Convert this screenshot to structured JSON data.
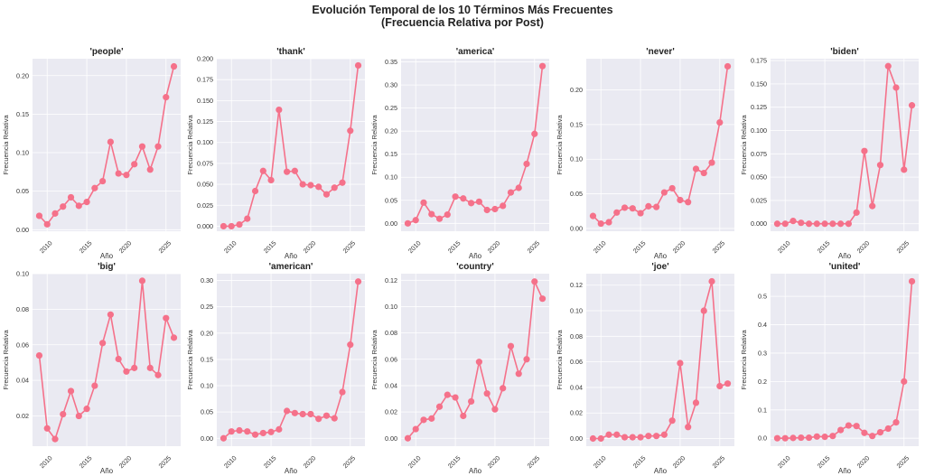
{
  "figure": {
    "title_line1": "Evolución Temporal de los 10 Términos Más Frecuentes",
    "title_line2": "(Frecuencia Relativa por Post)",
    "line_color": "#f5718a",
    "panel_bg": "#eaeaf2"
  },
  "chart_data": [
    {
      "type": "line",
      "title": "'people'",
      "xlabel": "Año",
      "ylabel": "Frecuencia Relativa",
      "x": [
        2009,
        2010,
        2011,
        2012,
        2013,
        2014,
        2015,
        2016,
        2017,
        2018,
        2019,
        2020,
        2021,
        2022,
        2023,
        2024,
        2025,
        2026
      ],
      "values": [
        0.018,
        0.007,
        0.021,
        0.03,
        0.042,
        0.031,
        0.036,
        0.054,
        0.063,
        0.114,
        0.073,
        0.071,
        0.085,
        0.108,
        0.078,
        0.108,
        0.172,
        0.212
      ],
      "ylim": [
        -0.002,
        0.222
      ],
      "yticks": [
        0.0,
        0.05,
        0.1,
        0.15,
        0.2
      ],
      "yticklabels": [
        "0.00",
        "0.05",
        "0.10",
        "0.15",
        "0.20"
      ],
      "xticks": [
        2010,
        2015,
        2020,
        2025
      ]
    },
    {
      "type": "line",
      "title": "'thank'",
      "xlabel": "Año",
      "ylabel": "Frecuencia Relativa",
      "x": [
        2009,
        2010,
        2011,
        2012,
        2013,
        2014,
        2015,
        2016,
        2017,
        2018,
        2019,
        2020,
        2021,
        2022,
        2023,
        2024,
        2025,
        2026
      ],
      "values": [
        0.0,
        0.0,
        0.002,
        0.009,
        0.042,
        0.066,
        0.055,
        0.139,
        0.065,
        0.066,
        0.05,
        0.049,
        0.047,
        0.038,
        0.046,
        0.052,
        0.114,
        0.192
      ],
      "ylim": [
        -0.006,
        0.2
      ],
      "yticks": [
        0,
        0.025,
        0.05,
        0.075,
        0.1,
        0.125,
        0.15,
        0.175,
        0.2
      ],
      "yticklabels": [
        "0.000",
        "0.025",
        "0.050",
        "0.075",
        "0.100",
        "0.125",
        "0.150",
        "0.175",
        "0.200"
      ],
      "xticks": [
        2010,
        2015,
        2020,
        2025
      ]
    },
    {
      "type": "line",
      "title": "'america'",
      "xlabel": "Año",
      "ylabel": "Frecuencia Relativa",
      "x": [
        2009,
        2010,
        2011,
        2012,
        2013,
        2014,
        2015,
        2016,
        2017,
        2018,
        2019,
        2020,
        2021,
        2022,
        2023,
        2024,
        2025,
        2026
      ],
      "values": [
        0.0,
        0.007,
        0.045,
        0.02,
        0.01,
        0.019,
        0.058,
        0.054,
        0.044,
        0.047,
        0.029,
        0.031,
        0.038,
        0.067,
        0.077,
        0.129,
        0.194,
        0.341
      ],
      "ylim": [
        -0.017,
        0.357
      ],
      "yticks": [
        0,
        0.05,
        0.1,
        0.15,
        0.2,
        0.25,
        0.3,
        0.35
      ],
      "yticklabels": [
        "0.00",
        "0.05",
        "0.10",
        "0.15",
        "0.20",
        "0.25",
        "0.30",
        "0.35"
      ],
      "xticks": [
        2010,
        2015,
        2020,
        2025
      ]
    },
    {
      "type": "line",
      "title": "'never'",
      "xlabel": "Año",
      "ylabel": "Frecuencia Relativa",
      "x": [
        2009,
        2010,
        2011,
        2012,
        2013,
        2014,
        2015,
        2016,
        2017,
        2018,
        2019,
        2020,
        2021,
        2022,
        2023,
        2024,
        2025,
        2026
      ],
      "values": [
        0.018,
        0.007,
        0.009,
        0.023,
        0.03,
        0.029,
        0.022,
        0.032,
        0.031,
        0.052,
        0.058,
        0.041,
        0.038,
        0.086,
        0.08,
        0.095,
        0.153,
        0.234
      ],
      "ylim": [
        -0.004,
        0.245
      ],
      "yticks": [
        0,
        0.05,
        0.1,
        0.15,
        0.2
      ],
      "yticklabels": [
        "0.00",
        "0.05",
        "0.10",
        "0.15",
        "0.20"
      ],
      "xticks": [
        2010,
        2015,
        2020,
        2025
      ]
    },
    {
      "type": "line",
      "title": "'biden'",
      "xlabel": "Año",
      "ylabel": "Frecuencia Relativa",
      "x": [
        2009,
        2010,
        2011,
        2012,
        2013,
        2014,
        2015,
        2016,
        2017,
        2018,
        2019,
        2020,
        2021,
        2022,
        2023,
        2024,
        2025,
        2026
      ],
      "values": [
        0.0,
        0.0,
        0.003,
        0.001,
        0.0,
        0.0,
        0.0,
        0.0,
        0.0,
        0.0,
        0.012,
        0.078,
        0.019,
        0.063,
        0.169,
        0.146,
        0.058,
        0.127
      ],
      "ylim": [
        -0.008,
        0.177
      ],
      "yticks": [
        0,
        0.025,
        0.05,
        0.075,
        0.1,
        0.125,
        0.15,
        0.175
      ],
      "yticklabels": [
        "0.000",
        "0.025",
        "0.050",
        "0.075",
        "0.100",
        "0.125",
        "0.150",
        "0.175"
      ],
      "xticks": [
        2010,
        2015,
        2020,
        2025
      ]
    },
    {
      "type": "line",
      "title": "'big'",
      "xlabel": "Año",
      "ylabel": "Frecuencia Relativa",
      "x": [
        2009,
        2010,
        2011,
        2012,
        2013,
        2014,
        2015,
        2016,
        2017,
        2018,
        2019,
        2020,
        2021,
        2022,
        2023,
        2024,
        2025,
        2026
      ],
      "values": [
        0.054,
        0.013,
        0.007,
        0.021,
        0.034,
        0.02,
        0.024,
        0.037,
        0.061,
        0.077,
        0.052,
        0.045,
        0.047,
        0.096,
        0.047,
        0.043,
        0.075,
        0.064
      ],
      "ylim": [
        0.003,
        0.1
      ],
      "yticks": [
        0.02,
        0.04,
        0.06,
        0.08,
        0.1
      ],
      "yticklabels": [
        "0.02",
        "0.04",
        "0.06",
        "0.08",
        "0.10"
      ],
      "xticks": [
        2010,
        2015,
        2020,
        2025
      ]
    },
    {
      "type": "line",
      "title": "'american'",
      "xlabel": "Año",
      "ylabel": "Frecuencia Relativa",
      "x": [
        2009,
        2010,
        2011,
        2012,
        2013,
        2014,
        2015,
        2016,
        2017,
        2018,
        2019,
        2020,
        2021,
        2022,
        2023,
        2024,
        2025,
        2026
      ],
      "values": [
        0.0,
        0.013,
        0.015,
        0.013,
        0.007,
        0.01,
        0.012,
        0.017,
        0.052,
        0.048,
        0.046,
        0.046,
        0.037,
        0.043,
        0.038,
        0.088,
        0.178,
        0.298
      ],
      "ylim": [
        -0.015,
        0.313
      ],
      "yticks": [
        0,
        0.05,
        0.1,
        0.15,
        0.2,
        0.25,
        0.3
      ],
      "yticklabels": [
        "0.00",
        "0.05",
        "0.10",
        "0.15",
        "0.20",
        "0.25",
        "0.30"
      ],
      "xticks": [
        2010,
        2015,
        2020,
        2025
      ]
    },
    {
      "type": "line",
      "title": "'country'",
      "xlabel": "Año",
      "ylabel": "Frecuencia Relativa",
      "x": [
        2009,
        2010,
        2011,
        2012,
        2013,
        2014,
        2015,
        2016,
        2017,
        2018,
        2019,
        2020,
        2021,
        2022,
        2023,
        2024,
        2025,
        2026
      ],
      "values": [
        0.0,
        0.007,
        0.014,
        0.015,
        0.024,
        0.033,
        0.031,
        0.017,
        0.028,
        0.058,
        0.034,
        0.022,
        0.038,
        0.07,
        0.049,
        0.06,
        0.119,
        0.106
      ],
      "ylim": [
        -0.006,
        0.125
      ],
      "yticks": [
        0,
        0.02,
        0.04,
        0.06,
        0.08,
        0.1,
        0.12
      ],
      "yticklabels": [
        "0.00",
        "0.02",
        "0.04",
        "0.06",
        "0.08",
        "0.10",
        "0.12"
      ],
      "xticks": [
        2010,
        2015,
        2020,
        2025
      ]
    },
    {
      "type": "line",
      "title": "'joe'",
      "xlabel": "Año",
      "ylabel": "Frecuencia Relativa",
      "x": [
        2009,
        2010,
        2011,
        2012,
        2013,
        2014,
        2015,
        2016,
        2017,
        2018,
        2019,
        2020,
        2021,
        2022,
        2023,
        2024,
        2025,
        2026
      ],
      "values": [
        0.0,
        0.0,
        0.003,
        0.003,
        0.001,
        0.001,
        0.001,
        0.002,
        0.002,
        0.003,
        0.014,
        0.059,
        0.009,
        0.028,
        0.1,
        0.123,
        0.041,
        0.043
      ],
      "ylim": [
        -0.006,
        0.129
      ],
      "yticks": [
        0,
        0.02,
        0.04,
        0.06,
        0.08,
        0.1,
        0.12
      ],
      "yticklabels": [
        "0.00",
        "0.02",
        "0.04",
        "0.06",
        "0.08",
        "0.10",
        "0.12"
      ],
      "xticks": [
        2010,
        2015,
        2020,
        2025
      ]
    },
    {
      "type": "line",
      "title": "'united'",
      "xlabel": "Año",
      "ylabel": "Frecuencia Relativa",
      "x": [
        2009,
        2010,
        2011,
        2012,
        2013,
        2014,
        2015,
        2016,
        2017,
        2018,
        2019,
        2020,
        2021,
        2022,
        2023,
        2024,
        2025,
        2026
      ],
      "values": [
        0.0,
        0.0,
        0.001,
        0.002,
        0.002,
        0.006,
        0.005,
        0.008,
        0.029,
        0.045,
        0.043,
        0.019,
        0.008,
        0.021,
        0.034,
        0.056,
        0.2,
        0.553
      ],
      "ylim": [
        -0.028,
        0.58
      ],
      "yticks": [
        0,
        0.1,
        0.2,
        0.3,
        0.4,
        0.5
      ],
      "yticklabels": [
        "0.0",
        "0.1",
        "0.2",
        "0.3",
        "0.4",
        "0.5"
      ],
      "xticks": [
        2010,
        2015,
        2020,
        2025
      ]
    }
  ]
}
